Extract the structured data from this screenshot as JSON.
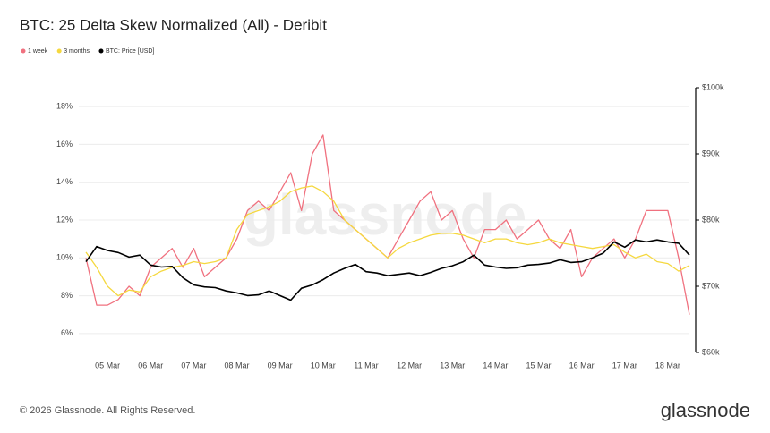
{
  "chart_data": {
    "type": "line",
    "title": "BTC: 25 Delta Skew Normalized (All) - Deribit",
    "footer": "© 2026 Glassnode. All Rights Reserved.",
    "logo": "glassnode",
    "watermark": "glassnode",
    "legend": "top-left",
    "grid": true,
    "categories": [
      null,
      null,
      "05 Mar",
      null,
      null,
      null,
      "06 Mar",
      null,
      null,
      null,
      "07 Mar",
      null,
      null,
      null,
      "08 Mar",
      null,
      null,
      null,
      "09 Mar",
      null,
      null,
      null,
      "10 Mar",
      null,
      null,
      null,
      "11 Mar",
      null,
      null,
      null,
      "12 Mar",
      null,
      null,
      null,
      "13 Mar",
      null,
      null,
      null,
      "14 Mar",
      null,
      null,
      null,
      "15 Mar",
      null,
      null,
      null,
      "16 Mar",
      null,
      null,
      null,
      "17 Mar",
      null,
      null,
      null,
      "18 Mar",
      null,
      null
    ],
    "ylim": [
      5,
      19
    ],
    "yticks": [
      {
        "value": 6,
        "label": "6%"
      },
      {
        "value": 8,
        "label": "8%"
      },
      {
        "value": 10,
        "label": "10%"
      },
      {
        "value": 12,
        "label": "12%"
      },
      {
        "value": 14,
        "label": "14%"
      },
      {
        "value": 16,
        "label": "16%"
      },
      {
        "value": 18,
        "label": "18%"
      }
    ],
    "y2lim": [
      60000,
      100000
    ],
    "y2ticks": [
      {
        "value": 60000,
        "label": "$60k"
      },
      {
        "value": 70000,
        "label": "$70k"
      },
      {
        "value": 80000,
        "label": "$80k"
      },
      {
        "value": 90000,
        "label": "$90k"
      },
      {
        "value": 100000,
        "label": "$100k"
      }
    ],
    "series": [
      {
        "name": "1 week",
        "color": "#f0717f",
        "values": [
          10,
          7.5,
          7.5,
          7.8,
          8.5,
          8.0,
          9.5,
          10.0,
          10.5,
          9.5,
          10.5,
          9.0,
          9.5,
          10.0,
          11.0,
          12.5,
          13.0,
          12.5,
          13.5,
          14.5,
          12.5,
          15.5,
          16.5,
          12.5,
          12.0,
          11.5,
          11.0,
          10.5,
          10.0,
          11.0,
          12.0,
          13.0,
          13.5,
          12.0,
          12.5,
          11.0,
          10.0,
          11.5,
          11.5,
          12.0,
          11.0,
          11.5,
          12.0,
          11.0,
          10.5,
          11.5,
          9.0,
          10.0,
          10.5,
          11.0,
          10.0,
          11.0,
          12.5,
          12.5,
          12.5,
          10.0,
          7.0
        ]
      },
      {
        "name": "3 months",
        "color": "#f5d83f",
        "values": [
          10.3,
          9.5,
          8.5,
          8.0,
          8.3,
          8.2,
          9.0,
          9.3,
          9.5,
          9.6,
          9.8,
          9.7,
          9.8,
          10.0,
          11.5,
          12.3,
          12.5,
          12.7,
          13.0,
          13.5,
          13.7,
          13.8,
          13.5,
          13.0,
          12.0,
          11.5,
          11.0,
          10.5,
          10.0,
          10.5,
          10.8,
          11.0,
          11.2,
          11.3,
          11.3,
          11.2,
          11.0,
          10.8,
          11.0,
          11.0,
          10.8,
          10.7,
          10.8,
          11.0,
          10.8,
          10.7,
          10.6,
          10.5,
          10.6,
          10.7,
          10.3,
          10.0,
          10.2,
          9.8,
          9.7,
          9.3,
          9.6
        ]
      },
      {
        "name": "BTC: Price [USD]",
        "color": "#000000",
        "axis": "y2",
        "values": [
          73700,
          76000,
          75400,
          75100,
          74400,
          74700,
          73200,
          72900,
          73000,
          71300,
          70200,
          69900,
          69800,
          69300,
          69000,
          68600,
          68700,
          69300,
          68600,
          67900,
          69700,
          70200,
          71000,
          72000,
          72700,
          73300,
          72200,
          72000,
          71600,
          71800,
          72000,
          71600,
          72100,
          72700,
          73100,
          73700,
          74700,
          73200,
          72900,
          72700,
          72800,
          73200,
          73300,
          73500,
          74000,
          73600,
          73700,
          74300,
          75000,
          76700,
          75900,
          77000,
          76700,
          77000,
          76700,
          76500,
          74700
        ]
      }
    ]
  }
}
